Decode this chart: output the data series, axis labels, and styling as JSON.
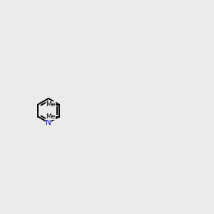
{
  "background_color": "#ebebeb",
  "atom_colors": {
    "N": "#0000ff",
    "S": "#cccc00",
    "O": "#ff2200",
    "C": "#000000"
  },
  "lw": 1.4,
  "fontsize": 7.5
}
